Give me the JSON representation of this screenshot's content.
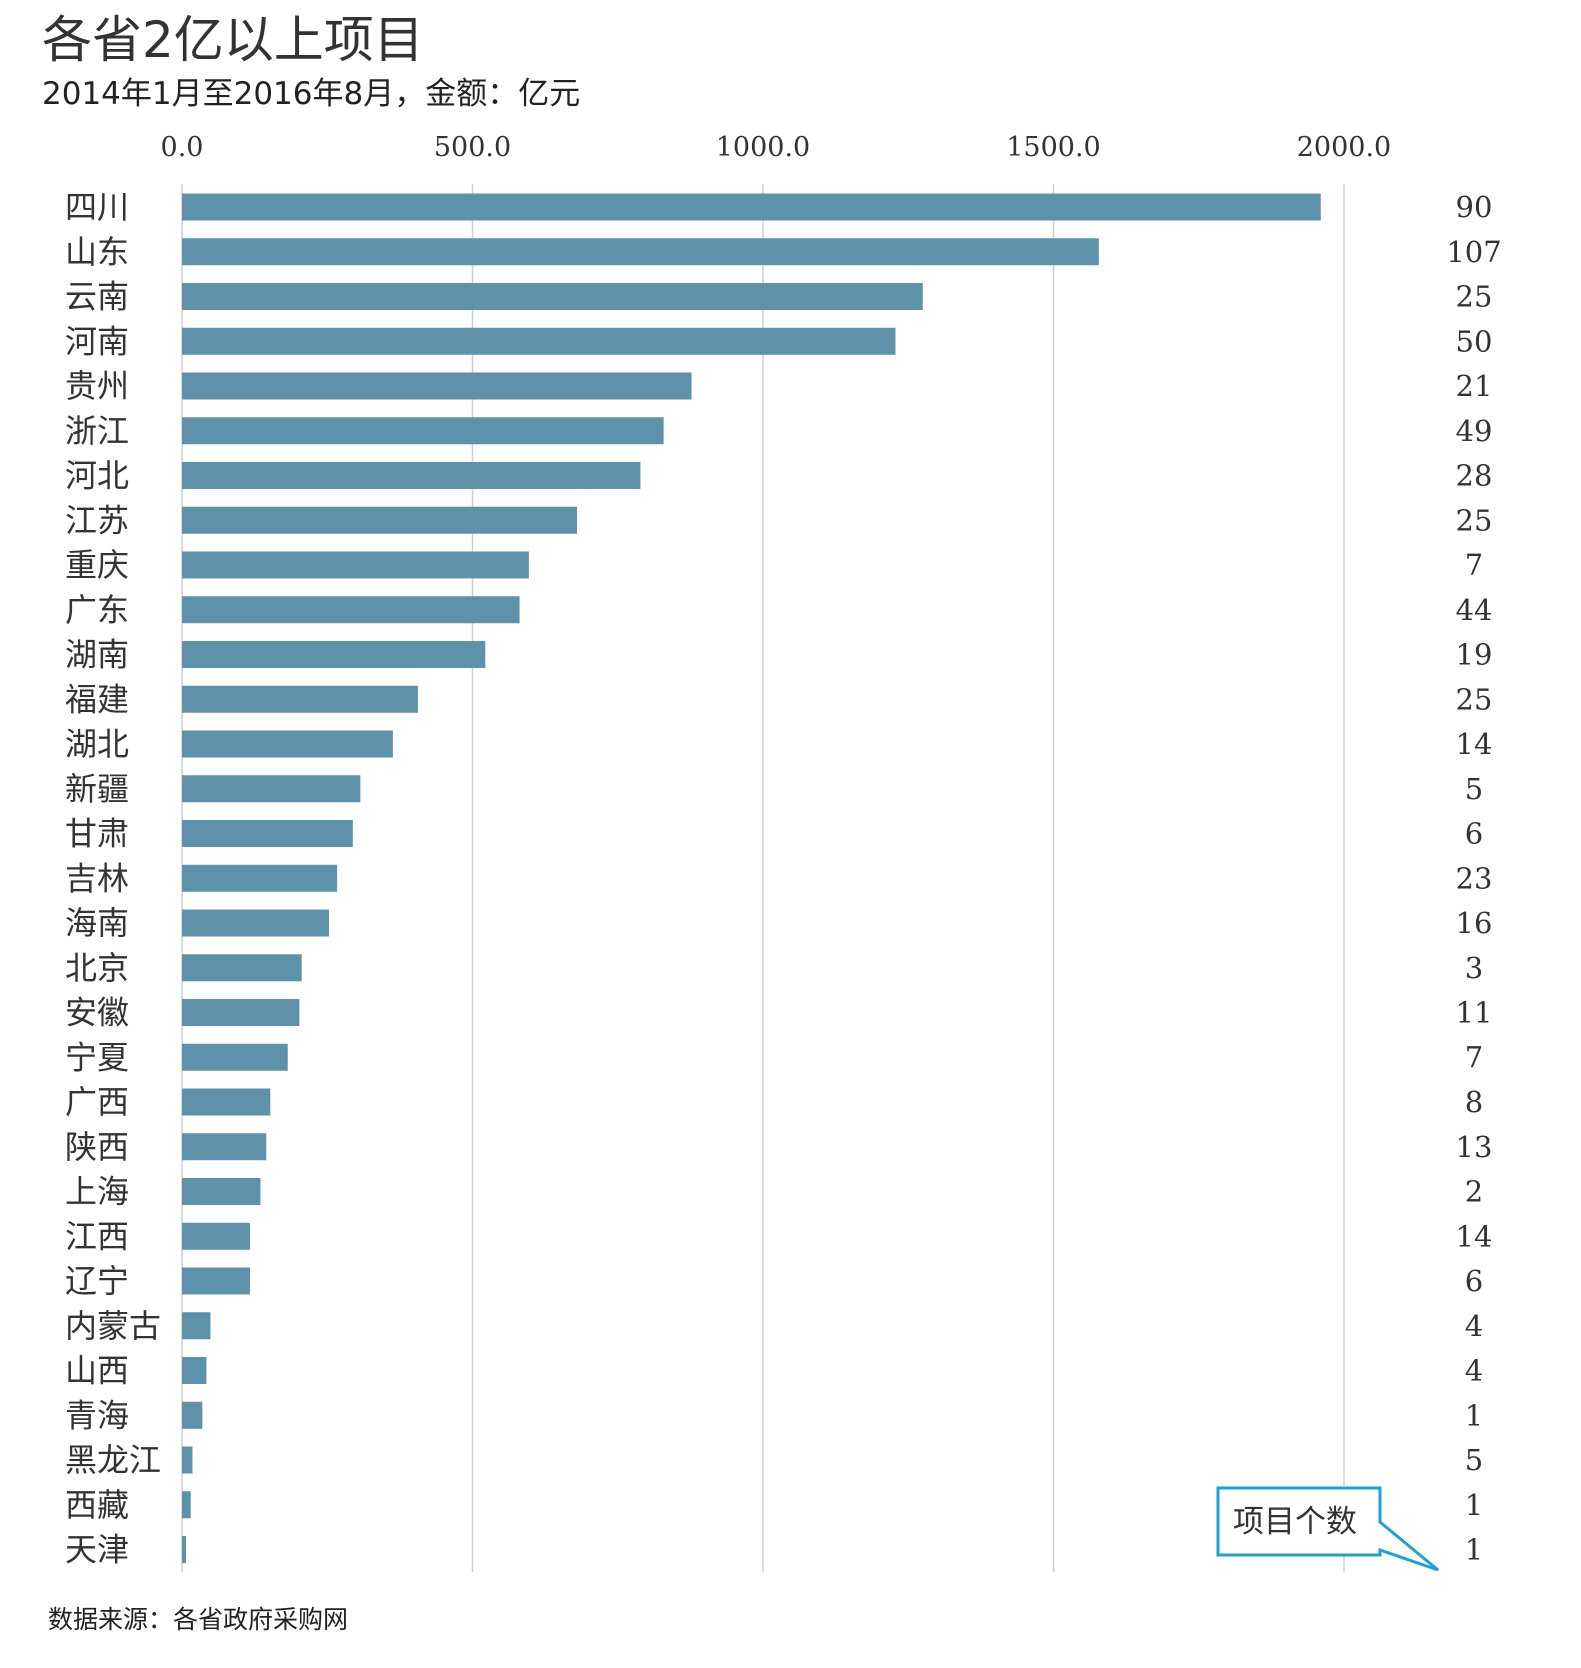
{
  "title": "各省2亿以上项目",
  "subtitle": "2014年1月至2016年8月，金额：亿元",
  "source": "数据来源：各省政府采购网",
  "callout": "项目个数",
  "colors": {
    "bar": "#5e92aa",
    "grid": "#d0d0d0",
    "callout": "#1da1d8"
  },
  "chart_data": {
    "type": "bar",
    "orientation": "horizontal",
    "xlim": [
      0,
      2000
    ],
    "xticks": [
      "0.0",
      "500.0",
      "1000.0",
      "1500.0",
      "2000.0"
    ],
    "tick_values": [
      0,
      500,
      1000,
      1500,
      2000
    ],
    "grid": true,
    "categories": [
      "四川",
      "山东",
      "云南",
      "河南",
      "贵州",
      "浙江",
      "河北",
      "江苏",
      "重庆",
      "广东",
      "湖南",
      "福建",
      "湖北",
      "新疆",
      "甘肃",
      "吉林",
      "海南",
      "北京",
      "安徽",
      "宁夏",
      "广西",
      "陕西",
      "上海",
      "江西",
      "辽宁",
      "内蒙古",
      "山西",
      "青海",
      "黑龙江",
      "西藏",
      "天津"
    ],
    "values": [
      1960,
      1578,
      1275,
      1228,
      877,
      829,
      789,
      680,
      597,
      581,
      522,
      406,
      363,
      307,
      294,
      267,
      253,
      206,
      202,
      182,
      152,
      145,
      135,
      117,
      117,
      49,
      42,
      35,
      18,
      15,
      7
    ],
    "counts": [
      90,
      107,
      25,
      50,
      21,
      49,
      28,
      25,
      7,
      44,
      19,
      25,
      14,
      5,
      6,
      23,
      16,
      3,
      11,
      7,
      8,
      13,
      2,
      14,
      6,
      4,
      4,
      1,
      5,
      1,
      1
    ]
  }
}
